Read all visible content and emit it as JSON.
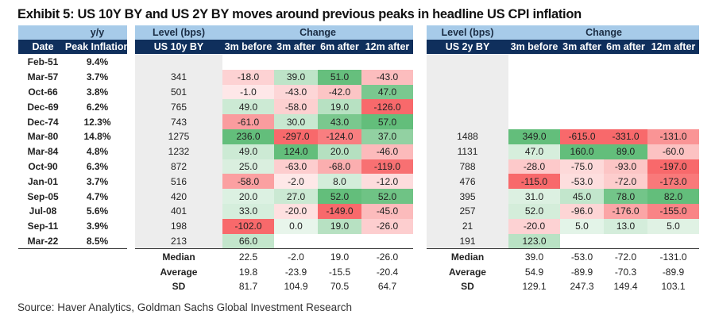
{
  "title": "Exhibit 5: US 10Y BY and US 2Y BY moves around previous peaks in headline US CPI inflation",
  "left_table": {
    "header_top": "y/y",
    "col_date": "Date",
    "col_peak": "Peak Inflation"
  },
  "us10": {
    "header_level": "Level (bps)",
    "header_change": "Change",
    "col_level": "US 10y BY",
    "cols": [
      "3m before",
      "3m after",
      "6m after",
      "12m after"
    ]
  },
  "us2": {
    "header_level": "Level (bps)",
    "header_change": "Change",
    "col_level": "US 2y BY",
    "cols": [
      "3m before",
      "3m after",
      "6m after",
      "12m after"
    ]
  },
  "rows": [
    {
      "date": "Feb-51",
      "peak": "9.4%",
      "us10_level": null,
      "us10": [
        null,
        null,
        null,
        null
      ],
      "us2_level": null,
      "us2": [
        null,
        null,
        null,
        null
      ]
    },
    {
      "date": "Mar-57",
      "peak": "3.7%",
      "us10_level": "341",
      "us10": [
        "-18.0",
        "39.0",
        "51.0",
        "-43.0"
      ],
      "us2_level": null,
      "us2": [
        null,
        null,
        null,
        null
      ]
    },
    {
      "date": "Oct-66",
      "peak": "3.8%",
      "us10_level": "501",
      "us10": [
        "-1.0",
        "-43.0",
        "-42.0",
        "47.0"
      ],
      "us2_level": null,
      "us2": [
        null,
        null,
        null,
        null
      ]
    },
    {
      "date": "Dec-69",
      "peak": "6.2%",
      "us10_level": "765",
      "us10": [
        "49.0",
        "-58.0",
        "19.0",
        "-126.0"
      ],
      "us2_level": null,
      "us2": [
        null,
        null,
        null,
        null
      ]
    },
    {
      "date": "Dec-74",
      "peak": "12.3%",
      "us10_level": "743",
      "us10": [
        "-61.0",
        "30.0",
        "43.0",
        "57.0"
      ],
      "us2_level": null,
      "us2": [
        null,
        null,
        null,
        null
      ]
    },
    {
      "date": "Mar-80",
      "peak": "14.8%",
      "us10_level": "1275",
      "us10": [
        "236.0",
        "-297.0",
        "-124.0",
        "37.0"
      ],
      "us2_level": "1488",
      "us2": [
        "349.0",
        "-615.0",
        "-331.0",
        "-131.0"
      ]
    },
    {
      "date": "Mar-84",
      "peak": "4.8%",
      "us10_level": "1232",
      "us10": [
        "49.0",
        "124.0",
        "20.0",
        "-46.0"
      ],
      "us2_level": "1131",
      "us2": [
        "47.0",
        "160.0",
        "89.0",
        "-60.0"
      ]
    },
    {
      "date": "Oct-90",
      "peak": "6.3%",
      "us10_level": "872",
      "us10": [
        "25.0",
        "-63.0",
        "-68.0",
        "-119.0"
      ],
      "us2_level": "788",
      "us2": [
        "-28.0",
        "-75.0",
        "-93.0",
        "-197.0"
      ]
    },
    {
      "date": "Jan-01",
      "peak": "3.7%",
      "us10_level": "516",
      "us10": [
        "-58.0",
        "-2.0",
        "8.0",
        "-12.0"
      ],
      "us2_level": "476",
      "us2": [
        "-115.0",
        "-53.0",
        "-72.0",
        "-173.0"
      ]
    },
    {
      "date": "Sep-05",
      "peak": "4.7%",
      "us10_level": "420",
      "us10": [
        "20.0",
        "27.0",
        "52.0",
        "52.0"
      ],
      "us2_level": "395",
      "us2": [
        "31.0",
        "45.0",
        "78.0",
        "82.0"
      ]
    },
    {
      "date": "Jul-08",
      "peak": "5.6%",
      "us10_level": "401",
      "us10": [
        "33.0",
        "-20.0",
        "-149.0",
        "-45.0"
      ],
      "us2_level": "257",
      "us2": [
        "52.0",
        "-96.0",
        "-176.0",
        "-155.0"
      ]
    },
    {
      "date": "Sep-11",
      "peak": "3.9%",
      "us10_level": "198",
      "us10": [
        "-102.0",
        "0.0",
        "19.0",
        "-26.0"
      ],
      "us2_level": "21",
      "us2": [
        "-20.0",
        "5.0",
        "13.0",
        "5.0"
      ]
    },
    {
      "date": "Mar-22",
      "peak": "8.5%",
      "us10_level": "213",
      "us10": [
        "66.0",
        null,
        null,
        null
      ],
      "us2_level": "191",
      "us2": [
        "123.0",
        null,
        null,
        null
      ]
    }
  ],
  "stats": [
    {
      "label": "Median",
      "us10": [
        "22.5",
        "-2.0",
        "19.0",
        "-26.0"
      ],
      "us2": [
        "39.0",
        "-53.0",
        "-72.0",
        "-131.0"
      ]
    },
    {
      "label": "Average",
      "us10": [
        "19.8",
        "-23.9",
        "-15.5",
        "-20.4"
      ],
      "us2": [
        "54.9",
        "-89.9",
        "-70.3",
        "-89.9"
      ]
    },
    {
      "label": "SD",
      "us10": [
        "81.7",
        "104.9",
        "70.5",
        "64.7"
      ],
      "us2": [
        "129.1",
        "247.3",
        "149.4",
        "103.1"
      ]
    }
  ],
  "colors": {
    "header_light": "#a7cbe9",
    "header_dark": "#0f2f5c",
    "green": "#63be7b",
    "red": "#f8696b"
  },
  "source": "Source: Haver Analytics, Goldman Sachs Global Investment Research"
}
